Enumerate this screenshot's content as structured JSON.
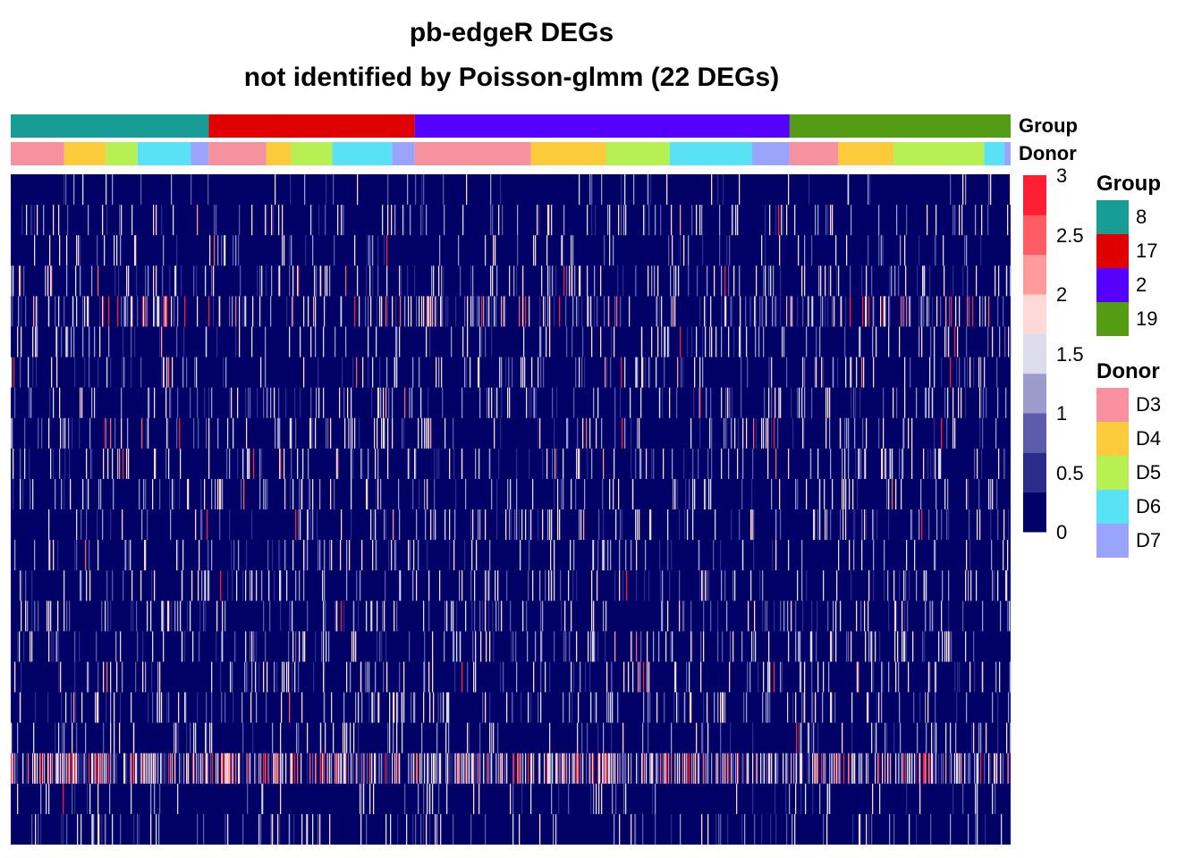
{
  "chart_data": {
    "type": "heatmap",
    "title": "pb-edgeR DEGs",
    "subtitle": "not identified by Poisson-glmm (22 DEGs)",
    "n_rows": 22,
    "color_scale": {
      "breaks": [
        0,
        0.5,
        1,
        1.5,
        2,
        2.5,
        3
      ],
      "tick_labels": [
        "3",
        "2.5",
        "2",
        "1.5",
        "1",
        "0.5",
        "0"
      ],
      "colors": [
        "#000066",
        "#2b2b8c",
        "#5c5caa",
        "#9b9bcc",
        "#dcdcec",
        "#ffd8d8",
        "#ff9b9b",
        "#ff5c64",
        "#ff1e32"
      ]
    },
    "annotations": [
      {
        "name": "Group",
        "levels": [
          "8",
          "17",
          "2",
          "19"
        ],
        "colors": [
          "#179c96",
          "#e00000",
          "#5500ff",
          "#559c15"
        ],
        "proportions": [
          0.198,
          0.206,
          0.375,
          0.221
        ]
      },
      {
        "name": "Donor",
        "levels": [
          "D3",
          "D4",
          "D5",
          "D6",
          "D7"
        ],
        "colors": [
          "#f7909f",
          "#fbcb3b",
          "#b7f052",
          "#59e2f5",
          "#9aa4fa"
        ],
        "segments_by_group": [
          [
            0.27,
            0.21,
            0.16,
            0.27,
            0.09
          ],
          [
            0.28,
            0.12,
            0.2,
            0.29,
            0.11
          ],
          [
            0.31,
            0.2,
            0.17,
            0.22,
            0.1
          ],
          [
            0.22,
            0.25,
            0.41,
            0.09,
            0.03
          ]
        ]
      }
    ],
    "rows": [
      {
        "density": 0.04,
        "hot": 0.0
      },
      {
        "density": 0.1,
        "hot": 0.002
      },
      {
        "density": 0.08,
        "hot": 0.003
      },
      {
        "density": 0.12,
        "hot": 0.004
      },
      {
        "density": 0.22,
        "hot": 0.03
      },
      {
        "density": 0.12,
        "hot": 0.003
      },
      {
        "density": 0.1,
        "hot": 0.01
      },
      {
        "density": 0.14,
        "hot": 0.004
      },
      {
        "density": 0.12,
        "hot": 0.005
      },
      {
        "density": 0.12,
        "hot": 0.003
      },
      {
        "density": 0.12,
        "hot": 0.003
      },
      {
        "density": 0.12,
        "hot": 0.003
      },
      {
        "density": 0.11,
        "hot": 0.002
      },
      {
        "density": 0.12,
        "hot": 0.002
      },
      {
        "density": 0.13,
        "hot": 0.003
      },
      {
        "density": 0.13,
        "hot": 0.002
      },
      {
        "density": 0.12,
        "hot": 0.002
      },
      {
        "density": 0.13,
        "hot": 0.002
      },
      {
        "density": 0.12,
        "hot": 0.002
      },
      {
        "density": 0.5,
        "hot": 0.12
      },
      {
        "density": 0.05,
        "hot": 0.001
      },
      {
        "density": 0.1,
        "hot": 0.002
      }
    ]
  },
  "legends": {
    "group": {
      "title": "Group",
      "items": [
        {
          "label": "8",
          "color": "#179c96"
        },
        {
          "label": "17",
          "color": "#e00000"
        },
        {
          "label": "2",
          "color": "#5500ff"
        },
        {
          "label": "19",
          "color": "#559c15"
        }
      ]
    },
    "donor": {
      "title": "Donor",
      "items": [
        {
          "label": "D3",
          "color": "#f7909f"
        },
        {
          "label": "D4",
          "color": "#fbcb3b"
        },
        {
          "label": "D5",
          "color": "#b7f052"
        },
        {
          "label": "D6",
          "color": "#59e2f5"
        },
        {
          "label": "D7",
          "color": "#9aa4fa"
        }
      ]
    }
  }
}
